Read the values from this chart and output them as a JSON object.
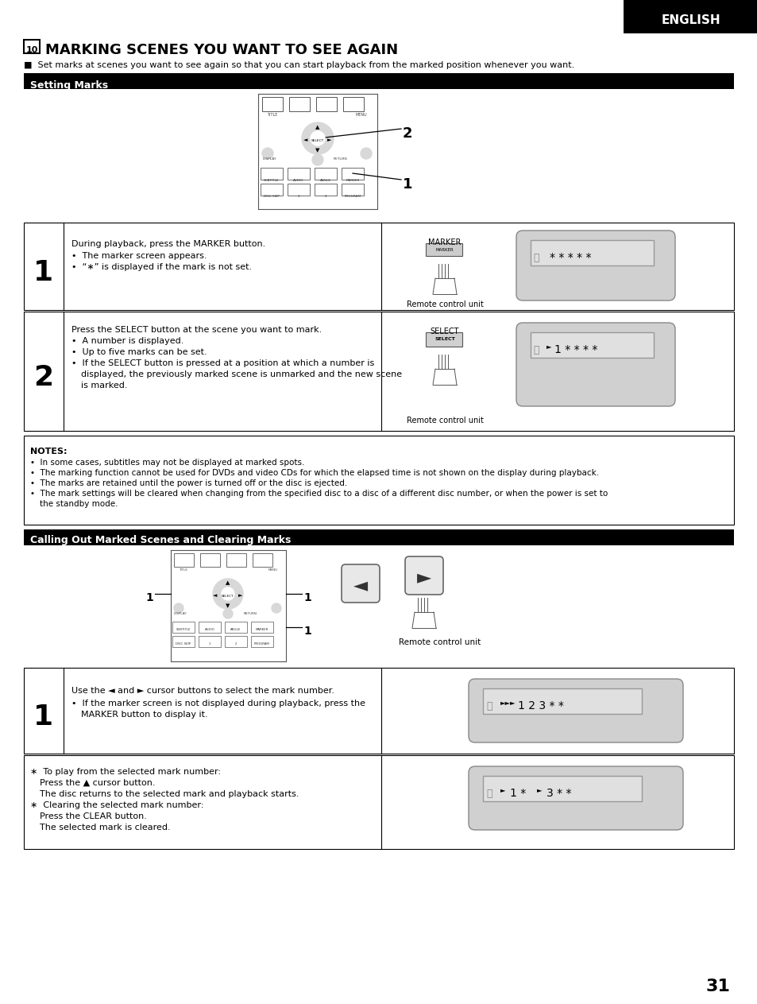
{
  "page_bg": "#ffffff",
  "title_number": "10",
  "title_text": "MARKING SCENES YOU WANT TO SEE AGAIN",
  "intro_text": "■  Set marks at scenes you want to see again so that you can start playback from the marked position whenever you want.",
  "section1_title": "Setting Marks",
  "section2_title": "Calling Out Marked Scenes and Clearing Marks",
  "notes_title": "NOTES:",
  "note1": "In some cases, subtitles may not be displayed at marked spots.",
  "note2": "The marking function cannot be used for DVDs and video CDs for which the elapsed time is not shown on the display during playback.",
  "note3": "The marks are retained until the power is turned off or the disc is ejected.",
  "note4a": "The mark settings will be cleared when changing from the specified disc to a disc of a different disc number, or when the power is set to",
  "note4b": "the standby mode.",
  "step1_line1": "During playback, press the MARKER button.",
  "step1_line2": "•  The marker screen appears.",
  "step1_line3": "•  “∗” is displayed if the mark is not set.",
  "step2_line1": "Press the SELECT button at the scene you want to mark.",
  "step2_line2": "•  A number is displayed.",
  "step2_line3": "•  Up to five marks can be set.",
  "step2_line4": "•  If the SELECT button is pressed at a position at which a number is",
  "step2_line5": "displayed, the previously marked scene is unmarked and the new scene",
  "step2_line6": "is marked.",
  "step3_line1": "Use the ◄ and ► cursor buttons to select the mark number.",
  "step3_line2": "•  If the marker screen is not displayed during playback, press the",
  "step3_line3": "MARKER button to display it.",
  "step4_line1": "∗  To play from the selected mark number:",
  "step4_line2": "Press the ▲ cursor button.",
  "step4_line3": "The disc returns to the selected mark and playback starts.",
  "step4_line4": "∗  Clearing the selected mark number:",
  "step4_line5": "Press the CLEAR button.",
  "step4_line6": "The selected mark is cleared.",
  "remote_label": "Remote control unit",
  "page_number": "31",
  "marker_label": "MARKER",
  "select_label": "SELECT"
}
